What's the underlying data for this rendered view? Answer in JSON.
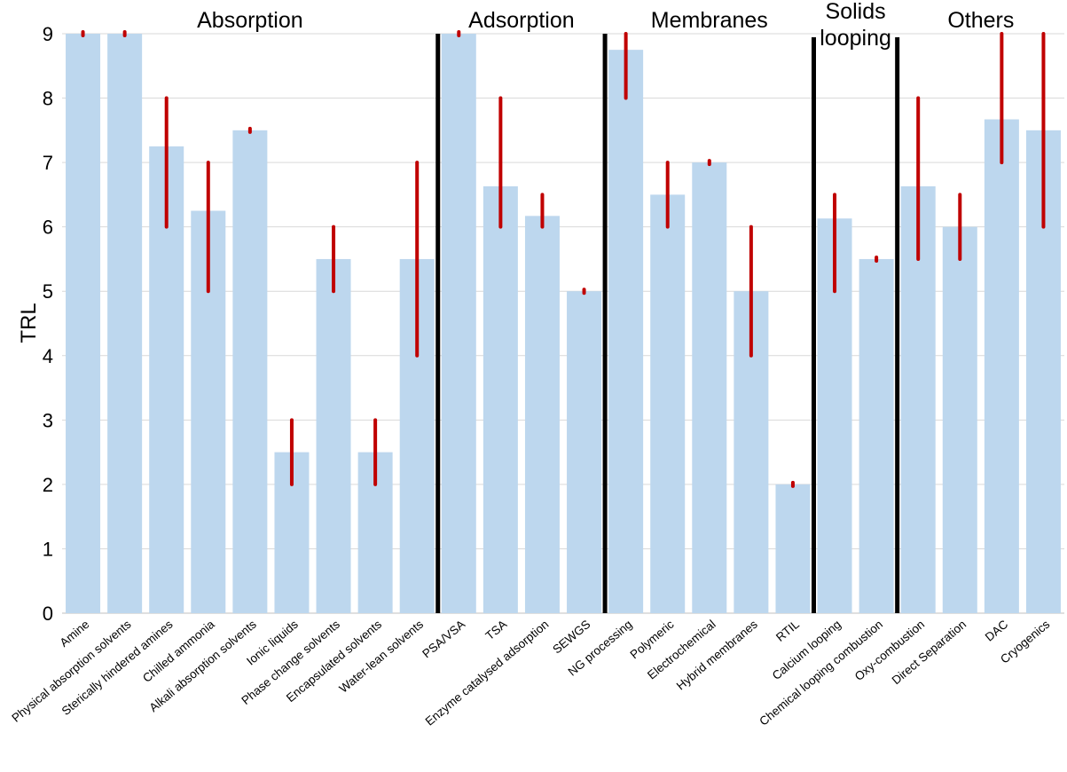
{
  "chart_data": {
    "type": "bar",
    "ylabel": "TRL",
    "xlabel": "",
    "ylim": [
      0,
      9
    ],
    "yticks": [
      0,
      1,
      2,
      3,
      4,
      5,
      6,
      7,
      8,
      9
    ],
    "grid": "horizontal",
    "bar_color": "#bdd7ee",
    "range_color": "#c00000",
    "categories": [
      "Amine",
      "Physical absorption solvents",
      "Sterically hindered amines",
      "Chilled ammonia",
      "Alkali absorption solvents",
      "Ionic liquids",
      "Phase change solvents",
      "Encapsulated solvents",
      "Water-lean solvents",
      "PSA/VSA",
      "TSA",
      "Enzyme catalysed adsorption",
      "SEWGS",
      "NG processing",
      "Polymeric",
      "Electrochemical",
      "Hybrid membranes",
      "RTIL",
      "Calcium looping",
      "Chemical looping combustion",
      "Oxy-combustion",
      "Direct Separation",
      "DAC",
      "Cryogenics"
    ],
    "values": [
      9,
      9,
      7.25,
      6.25,
      7.5,
      2.5,
      5.5,
      2.5,
      5.5,
      9,
      6.63,
      6.17,
      5,
      8.75,
      6.5,
      7,
      5,
      2,
      6.13,
      5.5,
      6.63,
      6,
      7.67,
      7.5
    ],
    "ranges": [
      [
        9,
        9
      ],
      [
        9,
        9
      ],
      [
        6,
        8
      ],
      [
        5,
        7
      ],
      [
        7.5,
        7.5
      ],
      [
        2,
        3
      ],
      [
        5,
        6
      ],
      [
        2,
        3
      ],
      [
        4,
        7
      ],
      [
        9,
        9
      ],
      [
        6,
        8
      ],
      [
        6,
        6.5
      ],
      [
        5,
        5
      ],
      [
        8,
        9
      ],
      [
        6,
        7
      ],
      [
        7,
        7
      ],
      [
        4,
        6
      ],
      [
        2,
        2
      ],
      [
        5,
        6.5
      ],
      [
        5.5,
        5.5
      ],
      [
        5.5,
        8
      ],
      [
        5.5,
        6.5
      ],
      [
        7,
        9
      ],
      [
        6,
        9
      ]
    ],
    "groups": [
      {
        "label": "Absorption",
        "start": 0,
        "end": 8
      },
      {
        "label": "Adsorption",
        "start": 9,
        "end": 12
      },
      {
        "label": "Membranes",
        "start": 13,
        "end": 17
      },
      {
        "label": "Solids looping",
        "start": 18,
        "end": 19
      },
      {
        "label": "Others",
        "start": 20,
        "end": 23
      }
    ]
  }
}
